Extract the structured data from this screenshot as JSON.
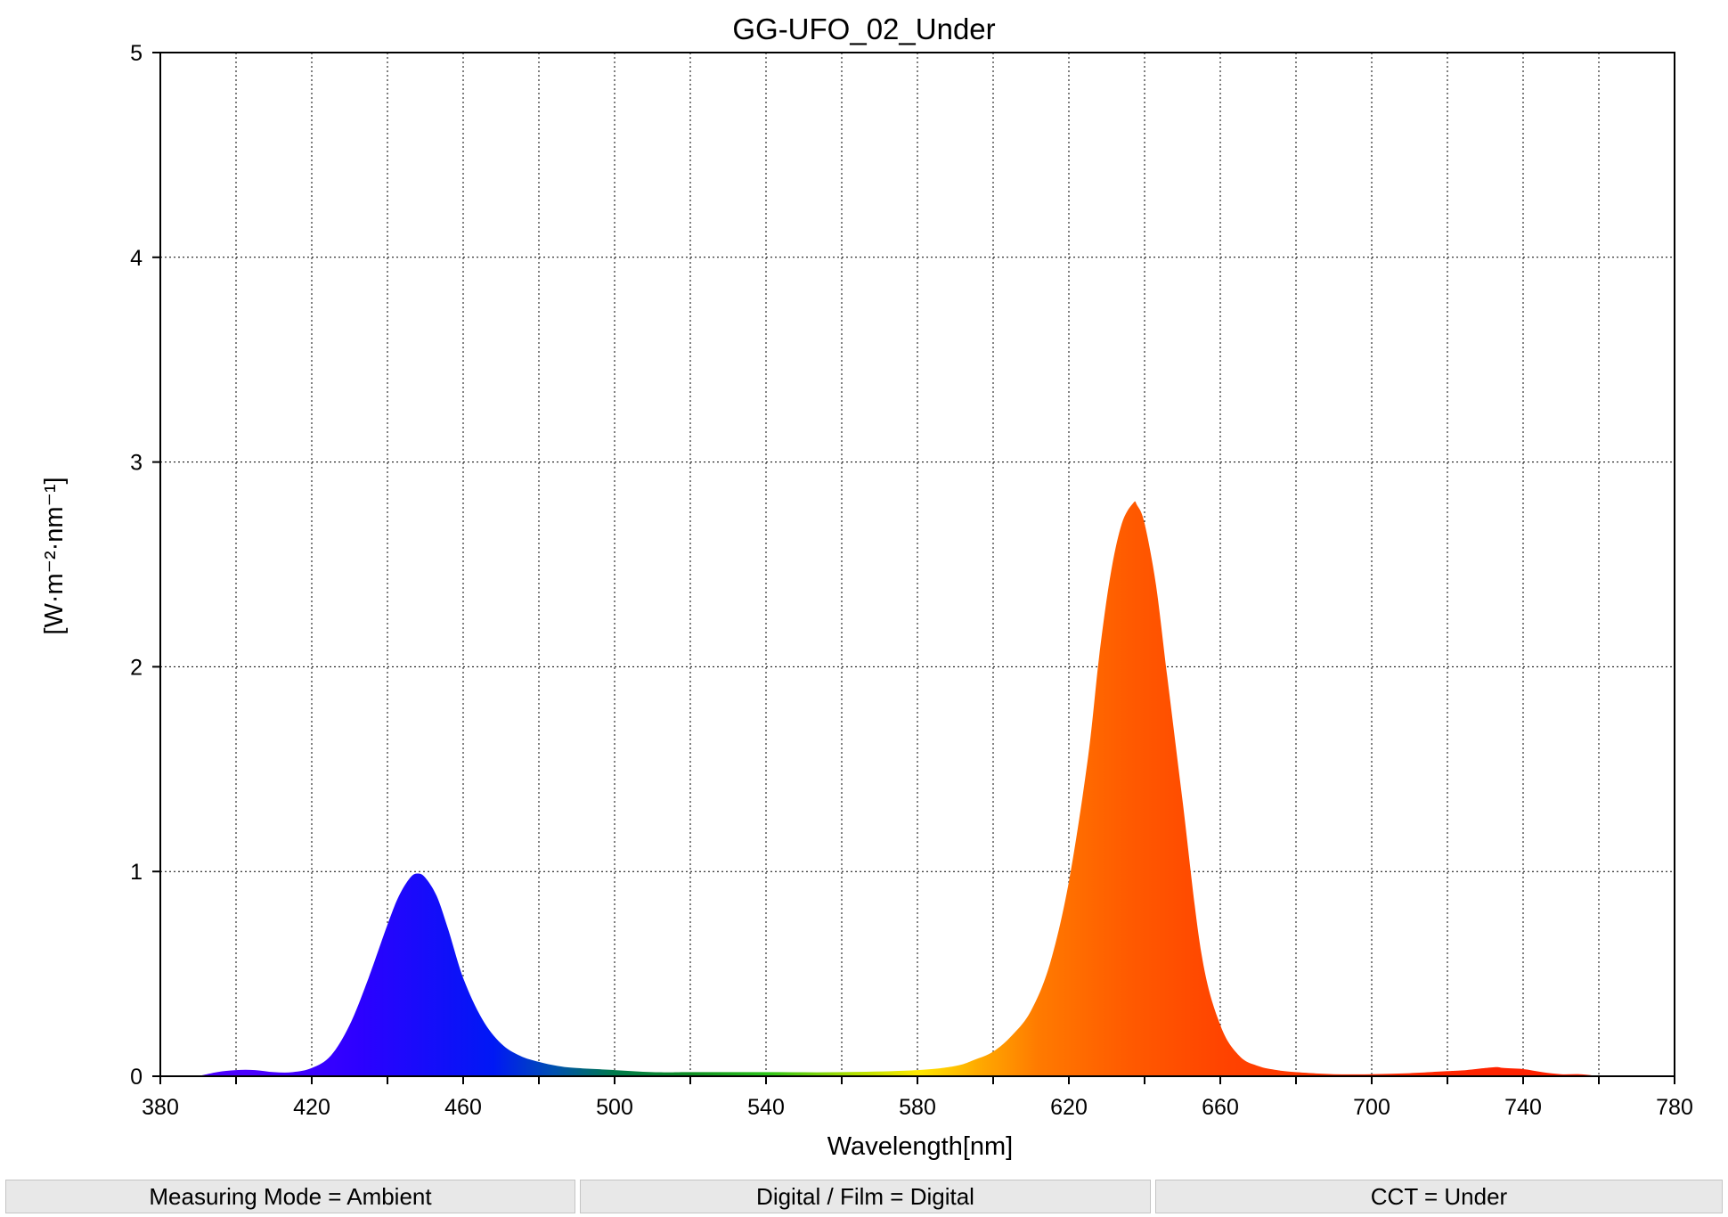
{
  "chart_data": {
    "type": "area",
    "title": "GG-UFO_02_Under",
    "xlabel": "Wavelength[nm]",
    "ylabel": "[W·m⁻²·nm⁻¹]",
    "xlim": [
      380,
      780
    ],
    "ylim": [
      0,
      5
    ],
    "xticks": [
      "380",
      "420",
      "460",
      "500",
      "540",
      "580",
      "620",
      "660",
      "700",
      "740",
      "780"
    ],
    "yticks": [
      "0",
      "1",
      "2",
      "3",
      "4",
      "5"
    ],
    "grid": true,
    "fill": "visible-spectrum color gradient",
    "series": [
      {
        "x": [
          390,
          395,
          400,
          405,
          410,
          415,
          420,
          425,
          430,
          435,
          440,
          443,
          446,
          448,
          450,
          453,
          456,
          460,
          465,
          470,
          475,
          480,
          485,
          490,
          500,
          510,
          520,
          540,
          560,
          580,
          590,
          595,
          600,
          605,
          610,
          615,
          620,
          625,
          628,
          631,
          634,
          637,
          638,
          640,
          643,
          646,
          650,
          655,
          660,
          665,
          670,
          675,
          680,
          690,
          700,
          710,
          720,
          725,
          730,
          733,
          735,
          740,
          745,
          750,
          755,
          760
        ],
        "y": [
          0.0,
          0.02,
          0.03,
          0.03,
          0.02,
          0.02,
          0.04,
          0.1,
          0.25,
          0.48,
          0.74,
          0.88,
          0.97,
          0.99,
          0.97,
          0.88,
          0.72,
          0.48,
          0.28,
          0.16,
          0.1,
          0.07,
          0.05,
          0.04,
          0.03,
          0.02,
          0.02,
          0.02,
          0.02,
          0.03,
          0.05,
          0.08,
          0.12,
          0.2,
          0.32,
          0.55,
          0.95,
          1.55,
          2.05,
          2.45,
          2.7,
          2.8,
          2.79,
          2.7,
          2.4,
          1.95,
          1.35,
          0.6,
          0.25,
          0.1,
          0.05,
          0.03,
          0.02,
          0.01,
          0.01,
          0.015,
          0.025,
          0.03,
          0.04,
          0.045,
          0.04,
          0.035,
          0.02,
          0.01,
          0.01,
          0.0
        ]
      }
    ]
  },
  "status_bar": {
    "items": [
      {
        "label": "Measuring Mode = Ambient"
      },
      {
        "label": "Digital / Film = Digital"
      },
      {
        "label": "CCT = Under"
      }
    ]
  }
}
